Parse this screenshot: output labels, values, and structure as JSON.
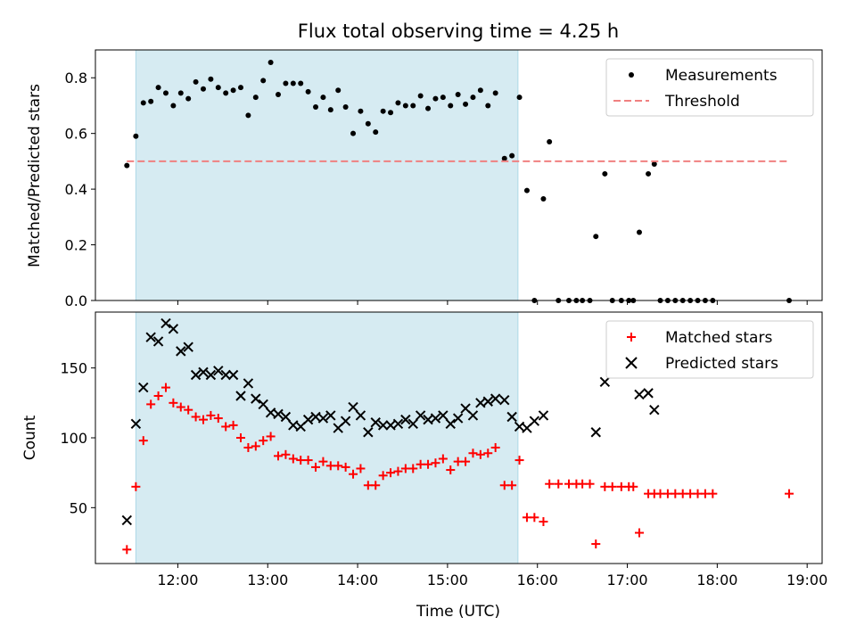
{
  "chart_data": [
    {
      "type": "scatter",
      "title": "Flux total observing time = 4.25 h",
      "xlabel": "",
      "ylabel": "Matched/Predicted stars",
      "xlim": [
        "11:05",
        "19:10"
      ],
      "ylim": [
        0,
        0.9
      ],
      "yticks": [
        0.0,
        0.2,
        0.4,
        0.6,
        0.8
      ],
      "yticklabels": [
        "0.0",
        "0.2",
        "0.4",
        "0.6",
        "0.8"
      ],
      "shaded_region": {
        "from": "11:32",
        "to": "15:47",
        "color": "#add8e6"
      },
      "legend_position": "upper-right",
      "series": [
        {
          "name": "Measurements",
          "marker": "dot",
          "color": "#000000",
          "points": [
            [
              "11:26",
              0.485
            ],
            [
              "11:32",
              0.59
            ],
            [
              "11:37",
              0.71
            ],
            [
              "11:42",
              0.715
            ],
            [
              "11:47",
              0.765
            ],
            [
              "11:52",
              0.745
            ],
            [
              "11:57",
              0.7
            ],
            [
              "12:02",
              0.745
            ],
            [
              "12:07",
              0.725
            ],
            [
              "12:12",
              0.785
            ],
            [
              "12:17",
              0.76
            ],
            [
              "12:22",
              0.795
            ],
            [
              "12:27",
              0.765
            ],
            [
              "12:32",
              0.745
            ],
            [
              "12:37",
              0.755
            ],
            [
              "12:42",
              0.765
            ],
            [
              "12:47",
              0.665
            ],
            [
              "12:52",
              0.73
            ],
            [
              "12:57",
              0.79
            ],
            [
              "13:02",
              0.855
            ],
            [
              "13:07",
              0.74
            ],
            [
              "13:12",
              0.78
            ],
            [
              "13:17",
              0.78
            ],
            [
              "13:22",
              0.78
            ],
            [
              "13:27",
              0.75
            ],
            [
              "13:32",
              0.695
            ],
            [
              "13:37",
              0.73
            ],
            [
              "13:42",
              0.685
            ],
            [
              "13:47",
              0.755
            ],
            [
              "13:52",
              0.695
            ],
            [
              "13:57",
              0.6
            ],
            [
              "14:02",
              0.68
            ],
            [
              "14:07",
              0.635
            ],
            [
              "14:12",
              0.605
            ],
            [
              "14:17",
              0.68
            ],
            [
              "14:22",
              0.675
            ],
            [
              "14:27",
              0.71
            ],
            [
              "14:32",
              0.7
            ],
            [
              "14:37",
              0.7
            ],
            [
              "14:42",
              0.735
            ],
            [
              "14:47",
              0.69
            ],
            [
              "14:52",
              0.725
            ],
            [
              "14:57",
              0.73
            ],
            [
              "15:02",
              0.7
            ],
            [
              "15:07",
              0.74
            ],
            [
              "15:12",
              0.705
            ],
            [
              "15:17",
              0.73
            ],
            [
              "15:22",
              0.755
            ],
            [
              "15:27",
              0.7
            ],
            [
              "15:32",
              0.745
            ],
            [
              "15:38",
              0.51
            ],
            [
              "15:43",
              0.52
            ],
            [
              "15:48",
              0.73
            ],
            [
              "15:53",
              0.395
            ],
            [
              "15:58",
              0.0
            ],
            [
              "16:04",
              0.365
            ],
            [
              "16:08",
              0.57
            ],
            [
              "16:14",
              0.0
            ],
            [
              "16:21",
              0.0
            ],
            [
              "16:26",
              0.0
            ],
            [
              "16:30",
              0.0
            ],
            [
              "16:35",
              0.0
            ],
            [
              "16:39",
              0.23
            ],
            [
              "16:45",
              0.455
            ],
            [
              "16:50",
              0.0
            ],
            [
              "16:56",
              0.0
            ],
            [
              "17:01",
              0.0
            ],
            [
              "17:04",
              0.0
            ],
            [
              "17:08",
              0.245
            ],
            [
              "17:14",
              0.455
            ],
            [
              "17:18",
              0.49
            ],
            [
              "17:22",
              0.0
            ],
            [
              "17:27",
              0.0
            ],
            [
              "17:32",
              0.0
            ],
            [
              "17:37",
              0.0
            ],
            [
              "17:42",
              0.0
            ],
            [
              "17:47",
              0.0
            ],
            [
              "17:52",
              0.0
            ],
            [
              "17:57",
              0.0
            ],
            [
              "18:48",
              0.0
            ]
          ]
        },
        {
          "name": "Threshold",
          "marker": "dashed-line",
          "color": "#f08080",
          "points": [
            [
              "11:26",
              0.5
            ],
            [
              "18:48",
              0.5
            ]
          ]
        }
      ]
    },
    {
      "type": "scatter",
      "title": "",
      "xlabel": "Time (UTC)",
      "ylabel": "Count",
      "xlim": [
        "11:05",
        "19:10"
      ],
      "ylim": [
        10,
        190
      ],
      "xticks": [
        "12:00",
        "13:00",
        "14:00",
        "15:00",
        "16:00",
        "17:00",
        "18:00",
        "19:00"
      ],
      "yticks": [
        50,
        100,
        150
      ],
      "yticklabels": [
        "50",
        "100",
        "150"
      ],
      "shaded_region": {
        "from": "11:32",
        "to": "15:47",
        "color": "#add8e6"
      },
      "legend_position": "upper-right",
      "series": [
        {
          "name": "Matched stars",
          "marker": "plus",
          "color": "#ff0000",
          "points": [
            [
              "11:26",
              20
            ],
            [
              "11:32",
              65
            ],
            [
              "11:37",
              98
            ],
            [
              "11:42",
              124
            ],
            [
              "11:47",
              130
            ],
            [
              "11:52",
              136
            ],
            [
              "11:57",
              125
            ],
            [
              "12:02",
              122
            ],
            [
              "12:07",
              120
            ],
            [
              "12:12",
              115
            ],
            [
              "12:17",
              113
            ],
            [
              "12:22",
              116
            ],
            [
              "12:27",
              114
            ],
            [
              "12:32",
              108
            ],
            [
              "12:37",
              109
            ],
            [
              "12:42",
              100
            ],
            [
              "12:47",
              93
            ],
            [
              "12:52",
              94
            ],
            [
              "12:57",
              98
            ],
            [
              "13:02",
              101
            ],
            [
              "13:07",
              87
            ],
            [
              "13:12",
              88
            ],
            [
              "13:17",
              85
            ],
            [
              "13:22",
              84
            ],
            [
              "13:27",
              84
            ],
            [
              "13:32",
              79
            ],
            [
              "13:37",
              83
            ],
            [
              "13:42",
              80
            ],
            [
              "13:47",
              80
            ],
            [
              "13:52",
              79
            ],
            [
              "13:57",
              74
            ],
            [
              "14:02",
              78
            ],
            [
              "14:07",
              66
            ],
            [
              "14:12",
              66
            ],
            [
              "14:17",
              73
            ],
            [
              "14:22",
              75
            ],
            [
              "14:27",
              76
            ],
            [
              "14:32",
              78
            ],
            [
              "14:37",
              78
            ],
            [
              "14:42",
              81
            ],
            [
              "14:47",
              81
            ],
            [
              "14:52",
              82
            ],
            [
              "14:57",
              85
            ],
            [
              "15:02",
              77
            ],
            [
              "15:07",
              83
            ],
            [
              "15:12",
              83
            ],
            [
              "15:17",
              89
            ],
            [
              "15:22",
              88
            ],
            [
              "15:27",
              89
            ],
            [
              "15:32",
              93
            ],
            [
              "15:38",
              66
            ],
            [
              "15:43",
              66
            ],
            [
              "15:48",
              84
            ],
            [
              "15:53",
              43
            ],
            [
              "15:58",
              43
            ],
            [
              "16:04",
              40
            ],
            [
              "16:08",
              67
            ],
            [
              "16:14",
              67
            ],
            [
              "16:21",
              67
            ],
            [
              "16:26",
              67
            ],
            [
              "16:30",
              67
            ],
            [
              "16:35",
              67
            ],
            [
              "16:39",
              24
            ],
            [
              "16:45",
              65
            ],
            [
              "16:50",
              65
            ],
            [
              "16:56",
              65
            ],
            [
              "17:01",
              65
            ],
            [
              "17:04",
              65
            ],
            [
              "17:08",
              32
            ],
            [
              "17:14",
              60
            ],
            [
              "17:18",
              60
            ],
            [
              "17:22",
              60
            ],
            [
              "17:27",
              60
            ],
            [
              "17:32",
              60
            ],
            [
              "17:37",
              60
            ],
            [
              "17:42",
              60
            ],
            [
              "17:47",
              60
            ],
            [
              "17:52",
              60
            ],
            [
              "17:57",
              60
            ],
            [
              "18:48",
              60
            ]
          ]
        },
        {
          "name": "Predicted stars",
          "marker": "x",
          "color": "#000000",
          "points": [
            [
              "11:26",
              41
            ],
            [
              "11:32",
              110
            ],
            [
              "11:37",
              136
            ],
            [
              "11:42",
              172
            ],
            [
              "11:47",
              169
            ],
            [
              "11:52",
              182
            ],
            [
              "11:57",
              178
            ],
            [
              "12:02",
              162
            ],
            [
              "12:07",
              165
            ],
            [
              "12:12",
              145
            ],
            [
              "12:17",
              147
            ],
            [
              "12:22",
              145
            ],
            [
              "12:27",
              148
            ],
            [
              "12:32",
              145
            ],
            [
              "12:37",
              145
            ],
            [
              "12:42",
              130
            ],
            [
              "12:47",
              139
            ],
            [
              "12:52",
              128
            ],
            [
              "12:57",
              124
            ],
            [
              "13:02",
              118
            ],
            [
              "13:07",
              117
            ],
            [
              "13:12",
              115
            ],
            [
              "13:17",
              109
            ],
            [
              "13:22",
              108
            ],
            [
              "13:27",
              113
            ],
            [
              "13:32",
              115
            ],
            [
              "13:37",
              114
            ],
            [
              "13:42",
              116
            ],
            [
              "13:47",
              107
            ],
            [
              "13:52",
              112
            ],
            [
              "13:57",
              122
            ],
            [
              "14:02",
              116
            ],
            [
              "14:07",
              104
            ],
            [
              "14:12",
              111
            ],
            [
              "14:17",
              109
            ],
            [
              "14:22",
              109
            ],
            [
              "14:27",
              110
            ],
            [
              "14:32",
              113
            ],
            [
              "14:37",
              110
            ],
            [
              "14:42",
              116
            ],
            [
              "14:47",
              113
            ],
            [
              "14:52",
              114
            ],
            [
              "14:57",
              116
            ],
            [
              "15:02",
              110
            ],
            [
              "15:07",
              114
            ],
            [
              "15:12",
              121
            ],
            [
              "15:17",
              116
            ],
            [
              "15:22",
              125
            ],
            [
              "15:27",
              126
            ],
            [
              "15:32",
              128
            ],
            [
              "15:38",
              127
            ],
            [
              "15:43",
              115
            ],
            [
              "15:48",
              108
            ],
            [
              "15:53",
              107
            ],
            [
              "15:58",
              112
            ],
            [
              "16:04",
              116
            ],
            [
              "16:39",
              104
            ],
            [
              "16:45",
              140
            ],
            [
              "17:08",
              131
            ],
            [
              "17:14",
              132
            ],
            [
              "17:18",
              120
            ]
          ]
        }
      ]
    }
  ]
}
